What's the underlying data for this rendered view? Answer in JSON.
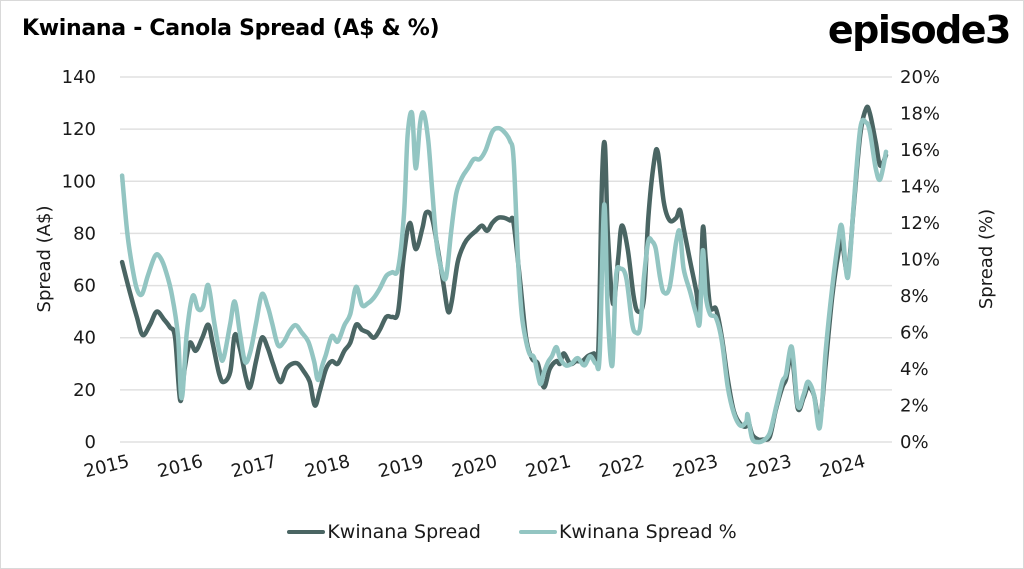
{
  "title": "Kwinana - Canola Spread (A$ & %)",
  "brand": "episode3",
  "colors": {
    "spread": "#4a6563",
    "spread_pct": "#93c5c2",
    "grid": "#e0e0e0",
    "text": "#1a1a1a"
  },
  "chart_data": {
    "type": "line",
    "title": "Kwinana - Canola Spread (A$ & %)",
    "xlabel": "",
    "ylabel": "Spread (A$)",
    "y2label": "Spread (%)",
    "ylim": [
      0,
      140
    ],
    "y2lim": [
      0,
      20
    ],
    "yticks": [
      "0",
      "20",
      "40",
      "60",
      "80",
      "100",
      "120",
      "140"
    ],
    "y2ticks": [
      "0%",
      "2%",
      "4%",
      "6%",
      "8%",
      "10%",
      "12%",
      "14%",
      "16%",
      "18%",
      "20%"
    ],
    "x_tick_labels": [
      "2015",
      "2016",
      "2017",
      "2018",
      "2019",
      "2020",
      "2021",
      "2022",
      "2023",
      "2023",
      "2024"
    ],
    "x_note": "x values are positions on the category axis where tick i is at x=i",
    "xlim": [
      -0.3,
      10.9
    ],
    "grid": "horizontal",
    "legend_position": "bottom",
    "series": [
      {
        "name": "Kwinana Spread",
        "axis": "left",
        "points": [
          [
            0.3,
            69
          ],
          [
            0.41,
            57
          ],
          [
            0.5,
            48
          ],
          [
            0.58,
            41
          ],
          [
            0.68,
            45
          ],
          [
            0.77,
            50
          ],
          [
            0.87,
            47
          ],
          [
            0.95,
            44
          ],
          [
            1.02,
            40
          ],
          [
            1.09,
            16
          ],
          [
            1.15,
            28
          ],
          [
            1.22,
            38
          ],
          [
            1.3,
            35
          ],
          [
            1.39,
            40
          ],
          [
            1.47,
            45
          ],
          [
            1.53,
            38
          ],
          [
            1.62,
            26
          ],
          [
            1.68,
            23
          ],
          [
            1.77,
            27
          ],
          [
            1.83,
            41
          ],
          [
            1.9,
            36
          ],
          [
            1.98,
            25
          ],
          [
            2.04,
            21
          ],
          [
            2.12,
            31
          ],
          [
            2.2,
            40
          ],
          [
            2.28,
            36
          ],
          [
            2.35,
            30
          ],
          [
            2.45,
            23
          ],
          [
            2.53,
            28
          ],
          [
            2.61,
            30
          ],
          [
            2.69,
            30
          ],
          [
            2.77,
            27
          ],
          [
            2.85,
            23
          ],
          [
            2.92,
            14
          ],
          [
            2.99,
            20
          ],
          [
            3.07,
            28
          ],
          [
            3.15,
            31
          ],
          [
            3.23,
            30
          ],
          [
            3.32,
            35
          ],
          [
            3.4,
            38
          ],
          [
            3.48,
            45
          ],
          [
            3.56,
            43
          ],
          [
            3.64,
            42
          ],
          [
            3.72,
            40
          ],
          [
            3.8,
            43
          ],
          [
            3.89,
            48
          ],
          [
            3.97,
            48
          ],
          [
            4.05,
            50
          ],
          [
            4.13,
            72
          ],
          [
            4.21,
            84
          ],
          [
            4.29,
            74
          ],
          [
            4.38,
            82
          ],
          [
            4.43,
            88
          ],
          [
            4.51,
            86
          ],
          [
            4.59,
            74
          ],
          [
            4.67,
            60
          ],
          [
            4.73,
            50
          ],
          [
            4.78,
            54
          ],
          [
            4.86,
            69
          ],
          [
            4.95,
            76
          ],
          [
            5.03,
            79
          ],
          [
            5.11,
            81
          ],
          [
            5.19,
            83
          ],
          [
            5.26,
            81
          ],
          [
            5.33,
            84
          ],
          [
            5.41,
            86
          ],
          [
            5.49,
            86
          ],
          [
            5.57,
            85
          ],
          [
            5.62,
            84
          ],
          [
            5.71,
            61
          ],
          [
            5.79,
            40
          ],
          [
            5.87,
            32
          ],
          [
            5.95,
            30
          ],
          [
            6.03,
            21
          ],
          [
            6.11,
            28
          ],
          [
            6.2,
            31
          ],
          [
            6.25,
            30
          ],
          [
            6.3,
            34
          ],
          [
            6.39,
            30
          ],
          [
            6.47,
            31
          ],
          [
            6.55,
            31
          ],
          [
            6.63,
            33
          ],
          [
            6.71,
            34
          ],
          [
            6.77,
            35
          ],
          [
            6.82,
            100
          ],
          [
            6.86,
            114
          ],
          [
            6.9,
            80
          ],
          [
            6.97,
            53
          ],
          [
            7.04,
            70
          ],
          [
            7.09,
            83
          ],
          [
            7.17,
            74
          ],
          [
            7.25,
            56
          ],
          [
            7.31,
            50
          ],
          [
            7.39,
            55
          ],
          [
            7.45,
            86
          ],
          [
            7.53,
            108
          ],
          [
            7.58,
            111
          ],
          [
            7.66,
            92
          ],
          [
            7.74,
            85
          ],
          [
            7.83,
            86
          ],
          [
            7.88,
            89
          ],
          [
            7.93,
            82
          ],
          [
            8.02,
            69
          ],
          [
            8.1,
            58
          ],
          [
            8.15,
            50
          ],
          [
            8.19,
            82
          ],
          [
            8.23,
            70
          ],
          [
            8.29,
            52
          ],
          [
            8.37,
            51
          ],
          [
            8.45,
            40
          ],
          [
            8.53,
            24
          ],
          [
            8.61,
            12
          ],
          [
            8.7,
            7
          ],
          [
            8.78,
            6
          ],
          [
            8.8,
            9
          ],
          [
            8.86,
            3
          ],
          [
            8.94,
            1
          ],
          [
            9.02,
            1
          ],
          [
            9.1,
            2
          ],
          [
            9.18,
            12
          ],
          [
            9.27,
            21
          ],
          [
            9.32,
            24
          ],
          [
            9.4,
            33
          ],
          [
            9.48,
            13
          ],
          [
            9.56,
            17
          ],
          [
            9.62,
            21
          ],
          [
            9.7,
            18
          ],
          [
            9.78,
            8
          ],
          [
            9.86,
            30
          ],
          [
            9.95,
            56
          ],
          [
            10.03,
            72
          ],
          [
            10.08,
            77
          ],
          [
            10.16,
            65
          ],
          [
            10.24,
            90
          ],
          [
            10.33,
            118
          ],
          [
            10.41,
            128
          ],
          [
            10.46,
            126
          ],
          [
            10.54,
            115
          ],
          [
            10.6,
            106
          ],
          [
            10.68,
            110
          ]
        ]
      },
      {
        "name": "Kwinana Spread %",
        "axis": "right",
        "points": [
          [
            0.3,
            14.6
          ],
          [
            0.37,
            11.5
          ],
          [
            0.43,
            9.8
          ],
          [
            0.5,
            8.4
          ],
          [
            0.57,
            8.1
          ],
          [
            0.65,
            9.1
          ],
          [
            0.75,
            10.2
          ],
          [
            0.82,
            10.1
          ],
          [
            0.9,
            9.3
          ],
          [
            0.98,
            8.0
          ],
          [
            1.06,
            5.8
          ],
          [
            1.11,
            2.4
          ],
          [
            1.18,
            6.0
          ],
          [
            1.26,
            8.0
          ],
          [
            1.33,
            7.3
          ],
          [
            1.4,
            7.4
          ],
          [
            1.47,
            8.6
          ],
          [
            1.55,
            6.6
          ],
          [
            1.63,
            4.8
          ],
          [
            1.68,
            4.6
          ],
          [
            1.77,
            6.5
          ],
          [
            1.83,
            7.7
          ],
          [
            1.9,
            6.0
          ],
          [
            1.97,
            4.4
          ],
          [
            2.04,
            4.9
          ],
          [
            2.12,
            6.5
          ],
          [
            2.2,
            8.1
          ],
          [
            2.28,
            7.4
          ],
          [
            2.34,
            6.5
          ],
          [
            2.42,
            5.3
          ],
          [
            2.5,
            5.5
          ],
          [
            2.58,
            6.1
          ],
          [
            2.66,
            6.4
          ],
          [
            2.74,
            6.0
          ],
          [
            2.83,
            5.5
          ],
          [
            2.91,
            4.4
          ],
          [
            2.96,
            3.4
          ],
          [
            3.02,
            4.2
          ],
          [
            3.07,
            4.8
          ],
          [
            3.15,
            5.8
          ],
          [
            3.23,
            5.5
          ],
          [
            3.32,
            6.4
          ],
          [
            3.4,
            7.0
          ],
          [
            3.48,
            8.5
          ],
          [
            3.56,
            7.5
          ],
          [
            3.64,
            7.6
          ],
          [
            3.72,
            7.9
          ],
          [
            3.8,
            8.4
          ],
          [
            3.89,
            9.1
          ],
          [
            3.97,
            9.3
          ],
          [
            4.05,
            9.5
          ],
          [
            4.13,
            12.5
          ],
          [
            4.18,
            16.8
          ],
          [
            4.24,
            18.0
          ],
          [
            4.29,
            15.0
          ],
          [
            4.35,
            17.5
          ],
          [
            4.4,
            18.0
          ],
          [
            4.46,
            16.5
          ],
          [
            4.51,
            14.0
          ],
          [
            4.57,
            11.0
          ],
          [
            4.63,
            9.6
          ],
          [
            4.7,
            9.0
          ],
          [
            4.77,
            11.5
          ],
          [
            4.84,
            13.6
          ],
          [
            4.92,
            14.5
          ],
          [
            5.0,
            15.0
          ],
          [
            5.08,
            15.5
          ],
          [
            5.16,
            15.5
          ],
          [
            5.24,
            16.0
          ],
          [
            5.33,
            17.0
          ],
          [
            5.41,
            17.2
          ],
          [
            5.49,
            17.0
          ],
          [
            5.57,
            16.5
          ],
          [
            5.62,
            15.5
          ],
          [
            5.68,
            10.0
          ],
          [
            5.73,
            7.0
          ],
          [
            5.79,
            5.5
          ],
          [
            5.84,
            4.8
          ],
          [
            5.9,
            4.6
          ],
          [
            5.98,
            3.2
          ],
          [
            6.03,
            3.8
          ],
          [
            6.09,
            4.4
          ],
          [
            6.14,
            4.7
          ],
          [
            6.2,
            5.2
          ],
          [
            6.25,
            4.6
          ],
          [
            6.33,
            4.2
          ],
          [
            6.41,
            4.3
          ],
          [
            6.49,
            4.6
          ],
          [
            6.58,
            4.2
          ],
          [
            6.66,
            4.7
          ],
          [
            6.74,
            4.3
          ],
          [
            6.79,
            4.8
          ],
          [
            6.85,
            13.0
          ],
          [
            6.9,
            7.0
          ],
          [
            6.96,
            4.2
          ],
          [
            7.01,
            9.0
          ],
          [
            7.07,
            9.5
          ],
          [
            7.15,
            9.0
          ],
          [
            7.23,
            6.5
          ],
          [
            7.28,
            6.0
          ],
          [
            7.34,
            6.3
          ],
          [
            7.39,
            9.0
          ],
          [
            7.45,
            11.0
          ],
          [
            7.5,
            11.0
          ],
          [
            7.55,
            10.6
          ],
          [
            7.61,
            9.0
          ],
          [
            7.66,
            8.2
          ],
          [
            7.74,
            8.5
          ],
          [
            7.83,
            11.0
          ],
          [
            7.88,
            11.5
          ],
          [
            7.93,
            9.5
          ],
          [
            8.02,
            8.2
          ],
          [
            8.1,
            7.0
          ],
          [
            8.15,
            6.6
          ],
          [
            8.19,
            10.5
          ],
          [
            8.23,
            8.0
          ],
          [
            8.29,
            7.0
          ],
          [
            8.37,
            6.8
          ],
          [
            8.45,
            5.5
          ],
          [
            8.53,
            3.0
          ],
          [
            8.61,
            1.6
          ],
          [
            8.7,
            0.9
          ],
          [
            8.78,
            1.1
          ],
          [
            8.8,
            1.5
          ],
          [
            8.86,
            0.2
          ],
          [
            8.94,
            0.0
          ],
          [
            9.02,
            0.1
          ],
          [
            9.1,
            0.5
          ],
          [
            9.18,
            1.8
          ],
          [
            9.27,
            3.3
          ],
          [
            9.32,
            3.7
          ],
          [
            9.4,
            5.2
          ],
          [
            9.48,
            2.0
          ],
          [
            9.56,
            2.6
          ],
          [
            9.62,
            3.3
          ],
          [
            9.7,
            2.6
          ],
          [
            9.78,
            0.8
          ],
          [
            9.86,
            5.0
          ],
          [
            9.95,
            8.5
          ],
          [
            10.03,
            11.0
          ],
          [
            10.08,
            11.8
          ],
          [
            10.16,
            9.0
          ],
          [
            10.24,
            13.0
          ],
          [
            10.33,
            17.2
          ],
          [
            10.41,
            17.5
          ],
          [
            10.46,
            17.0
          ],
          [
            10.54,
            15.0
          ],
          [
            10.6,
            14.4
          ],
          [
            10.68,
            15.9
          ]
        ]
      }
    ]
  },
  "legend": [
    {
      "label": "Kwinana Spread"
    },
    {
      "label": "Kwinana Spread %"
    }
  ]
}
